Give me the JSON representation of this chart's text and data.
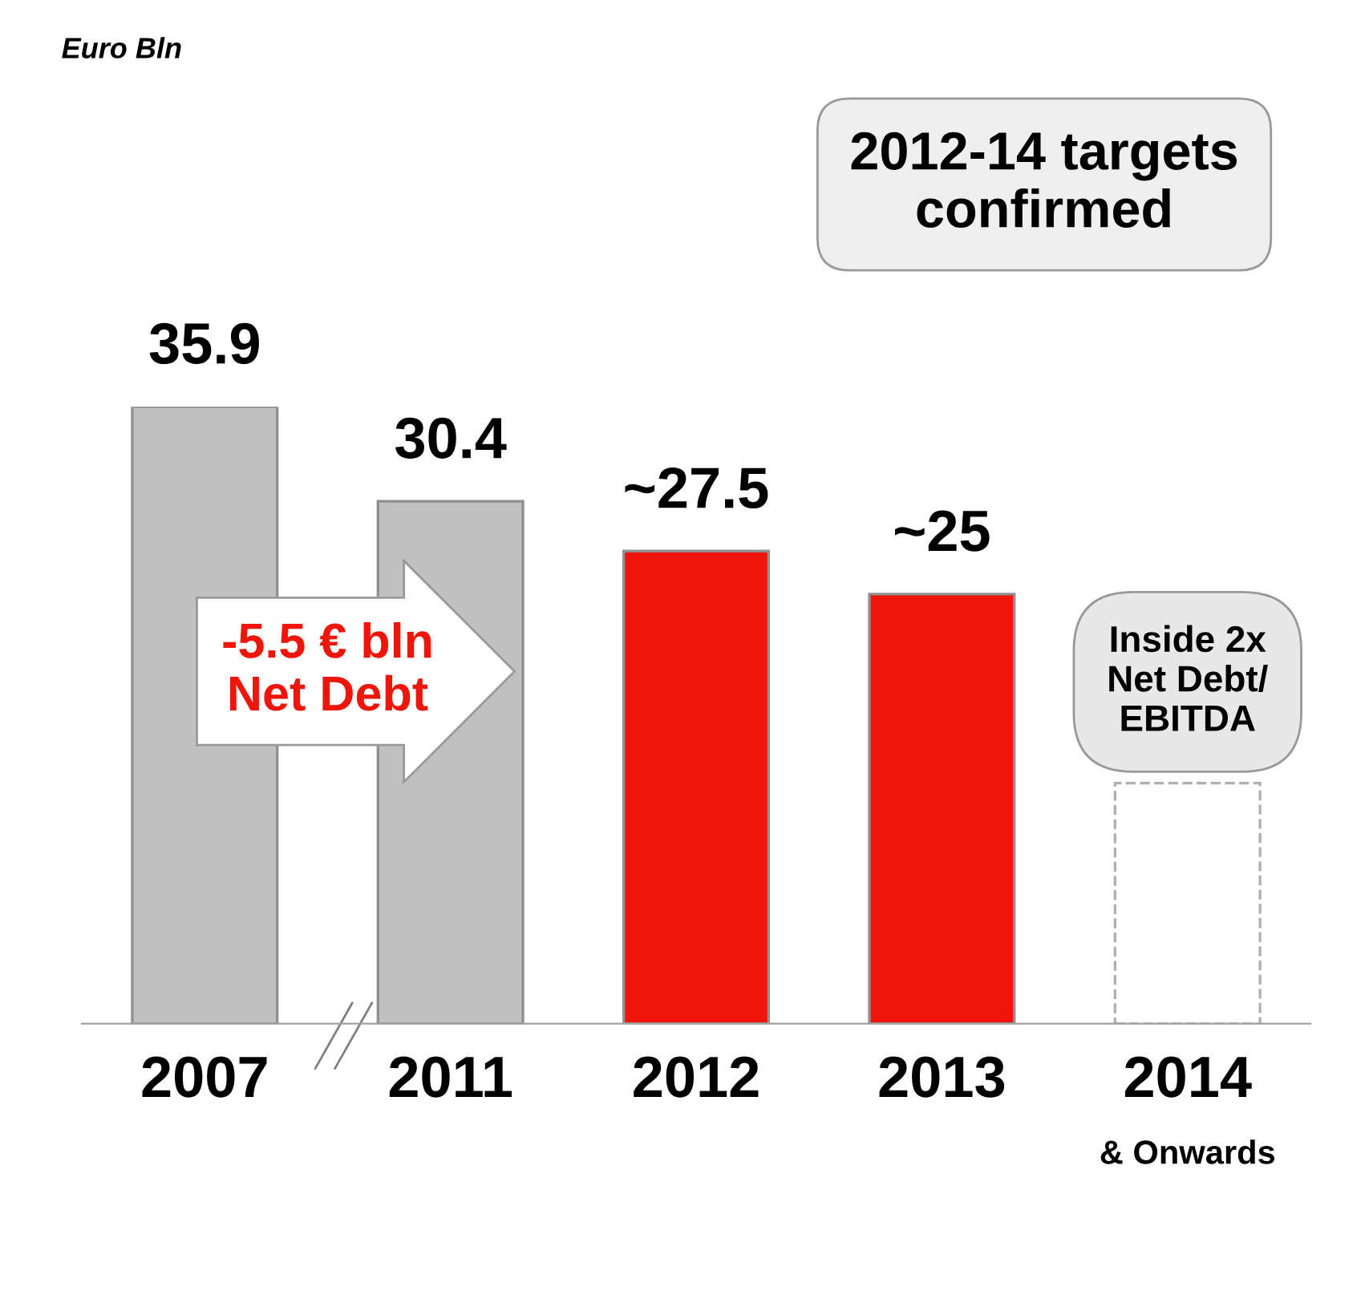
{
  "chart_data": {
    "type": "bar",
    "categories": [
      "2007",
      "2011",
      "2012",
      "2013",
      "2014"
    ],
    "series": [
      {
        "colors": [
          "#c0c0c0",
          "#c0c0c0",
          "#f0150a",
          "#f0150a",
          null
        ],
        "values": [
          35.9,
          30.4,
          27.5,
          25,
          null
        ],
        "value_labels": [
          "35.9",
          "30.4",
          "~27.5",
          "~25",
          null
        ]
      },
      {
        "color": "#ffffff",
        "line_style": "dashed",
        "values": [
          null,
          null,
          null,
          null,
          14
        ]
      }
    ],
    "annotations": [
      "Euro Bln",
      "2012-14 targets confirmed",
      "-5.5 € bln\nNet Debt",
      "Inside 2x\nNet Debt/\nEBITDA",
      "& Onwards"
    ],
    "grid": false,
    "legend": false,
    "tick_labels": "x"
  }
}
